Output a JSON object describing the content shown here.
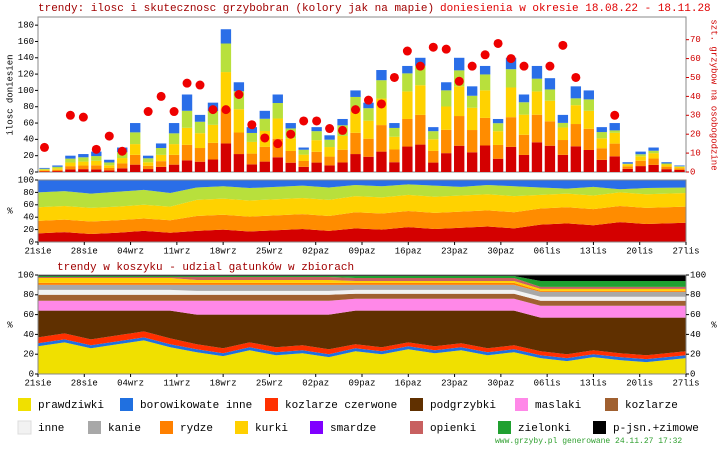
{
  "chart_data": [
    {
      "type": "bar",
      "title": "trendy: ilosc i skutecznosc grzybobran (kolory jak na mapie)",
      "subtitle": "doniesienia w okresie 18.08.22 - 18.11.28",
      "ylabel": "ilosc doniesien",
      "y2label": "szt. grzybow na osobogodzine",
      "x": [
        0,
        2,
        4,
        6,
        8,
        10,
        12,
        14,
        16,
        18,
        20,
        22,
        24,
        26,
        28,
        30,
        32,
        34,
        36,
        38,
        40,
        42,
        44,
        46,
        48,
        50,
        52,
        54,
        56,
        58,
        60,
        62,
        64,
        66,
        68,
        70,
        72,
        74,
        76,
        78,
        80,
        82,
        84,
        86,
        88,
        90,
        92,
        94,
        96,
        98
      ],
      "xlim": [
        -1,
        99
      ],
      "ylim": [
        0,
        190
      ],
      "yticks": [
        0,
        20,
        40,
        60,
        80,
        100,
        120,
        140,
        160,
        180
      ],
      "y2lim": [
        0,
        82
      ],
      "y2ticks": [
        0,
        10,
        20,
        30,
        40,
        50,
        60,
        70
      ],
      "series": [
        {
          "values": [
            5,
            8,
            20,
            22,
            25,
            15,
            30,
            60,
            20,
            35,
            60,
            95,
            70,
            85,
            175,
            110,
            55,
            75,
            95,
            60,
            30,
            55,
            45,
            65,
            100,
            85,
            125,
            60,
            130,
            140,
            55,
            110,
            140,
            105,
            130,
            65,
            140,
            95,
            130,
            115,
            70,
            105,
            100,
            55,
            60,
            12,
            25,
            30,
            12,
            8
          ]
        },
        {
          "axis": "y2",
          "color": "#ee0000",
          "values": [
            13,
            null,
            30,
            29,
            12,
            19,
            11,
            null,
            32,
            40,
            32,
            47,
            46,
            33,
            33,
            41,
            25,
            18,
            15,
            20,
            27,
            27,
            23,
            22,
            33,
            38,
            36,
            50,
            64,
            56,
            66,
            65,
            48,
            56,
            62,
            68,
            60,
            56,
            null,
            56,
            67,
            50,
            null,
            null,
            30,
            null,
            null,
            null,
            null,
            null
          ]
        }
      ]
    },
    {
      "type": "area",
      "ylabel": "%",
      "x": [
        0,
        4,
        8,
        12,
        16,
        20,
        24,
        28,
        32,
        36,
        40,
        44,
        48,
        52,
        56,
        60,
        64,
        68,
        72,
        76,
        80,
        84,
        88,
        92,
        98
      ],
      "xlim": [
        0,
        98
      ],
      "xticks": [
        {
          "value": 0,
          "label": "21sie"
        },
        {
          "value": 7,
          "label": "28sie"
        },
        {
          "value": 14,
          "label": "04wrz"
        },
        {
          "value": 21,
          "label": "11wrz"
        },
        {
          "value": 28,
          "label": "18wrz"
        },
        {
          "value": 35,
          "label": "25wrz"
        },
        {
          "value": 42,
          "label": "02paz"
        },
        {
          "value": 49,
          "label": "09paz"
        },
        {
          "value": 56,
          "label": "16paz"
        },
        {
          "value": 63,
          "label": "23paz"
        },
        {
          "value": 70,
          "label": "30paz"
        },
        {
          "value": 77,
          "label": "06lis"
        },
        {
          "value": 84,
          "label": "13lis"
        },
        {
          "value": 91,
          "label": "20lis"
        },
        {
          "value": 98,
          "label": "27lis"
        }
      ],
      "ylim": [
        0,
        100
      ],
      "yticks": [
        0,
        20,
        40,
        60,
        80,
        100
      ],
      "series": [
        {
          "color": "#d40000",
          "values": [
            14,
            16,
            13,
            15,
            18,
            15,
            18,
            20,
            17,
            19,
            21,
            18,
            22,
            20,
            24,
            21,
            23,
            25,
            22,
            28,
            30,
            27,
            32,
            29,
            31
          ]
        },
        {
          "color": "#ff8c00",
          "values": [
            20,
            20,
            20,
            20,
            20,
            20,
            24,
            24,
            24,
            24,
            24,
            24,
            26,
            26,
            26,
            26,
            26,
            26,
            26,
            26,
            26,
            26,
            26,
            26,
            26
          ]
        },
        {
          "color": "#ffd200",
          "values": [
            22,
            22,
            22,
            22,
            22,
            22,
            26,
            26,
            26,
            26,
            26,
            26,
            26,
            26,
            26,
            26,
            26,
            26,
            26,
            22,
            22,
            22,
            22,
            22,
            22
          ]
        },
        {
          "color": "#b8e03c",
          "values": [
            24,
            24,
            23,
            24,
            24,
            22,
            20,
            20,
            20,
            20,
            20,
            20,
            18,
            18,
            17,
            18,
            14,
            15,
            16,
            12,
            8,
            14,
            5,
            10,
            9
          ]
        },
        {
          "color": "#2a6ee8",
          "values": [
            20,
            18,
            22,
            19,
            16,
            21,
            12,
            10,
            13,
            11,
            9,
            12,
            8,
            10,
            7,
            9,
            11,
            8,
            10,
            12,
            14,
            11,
            15,
            13,
            12
          ]
        }
      ]
    },
    {
      "type": "area",
      "title": "trendy w koszyku - udzial gatunków w zbiorach",
      "ylabel": "%",
      "x": [
        0,
        4,
        8,
        12,
        16,
        20,
        24,
        28,
        32,
        36,
        40,
        44,
        48,
        52,
        56,
        60,
        64,
        68,
        72,
        76,
        80,
        84,
        88,
        92,
        98
      ],
      "xlim": [
        0,
        98
      ],
      "xticks": [
        {
          "value": 0,
          "label": "21sie"
        },
        {
          "value": 7,
          "label": "28sie"
        },
        {
          "value": 14,
          "label": "04wrz"
        },
        {
          "value": 21,
          "label": "11wrz"
        },
        {
          "value": 28,
          "label": "18wrz"
        },
        {
          "value": 35,
          "label": "25wrz"
        },
        {
          "value": 42,
          "label": "02paz"
        },
        {
          "value": 49,
          "label": "09paz"
        },
        {
          "value": 56,
          "label": "16paz"
        },
        {
          "value": 63,
          "label": "23paz"
        },
        {
          "value": 70,
          "label": "30paz"
        },
        {
          "value": 77,
          "label": "06lis"
        },
        {
          "value": 84,
          "label": "13lis"
        },
        {
          "value": 91,
          "label": "20lis"
        },
        {
          "value": 98,
          "label": "27lis"
        }
      ],
      "ylim": [
        0,
        100
      ],
      "yticks": [
        0,
        20,
        40,
        60,
        80,
        100
      ],
      "series": [
        {
          "name": "prawdziwki",
          "color": "#f0e000",
          "values": [
            28,
            32,
            26,
            30,
            34,
            27,
            22,
            18,
            24,
            19,
            21,
            17,
            23,
            20,
            25,
            21,
            24,
            19,
            22,
            16,
            13,
            17,
            14,
            12,
            16
          ]
        },
        {
          "name": "borowikowate inne",
          "color": "#2070e0",
          "values": [
            3,
            3,
            3,
            3,
            3,
            3,
            3,
            3,
            3,
            3,
            3,
            3,
            3,
            3,
            3,
            3,
            3,
            3,
            3,
            3,
            3,
            3,
            3,
            3,
            3
          ]
        },
        {
          "name": "kozlarze czerwone",
          "color": "#ff3000",
          "values": [
            6,
            6,
            6,
            6,
            6,
            6,
            5,
            5,
            5,
            5,
            5,
            5,
            4,
            4,
            4,
            4,
            4,
            4,
            4,
            4,
            4,
            4,
            4,
            4,
            4
          ]
        },
        {
          "name": "podgrzybki",
          "color": "#603000",
          "values": [
            27,
            23,
            29,
            25,
            21,
            28,
            30,
            34,
            28,
            33,
            31,
            35,
            34,
            37,
            32,
            36,
            33,
            38,
            35,
            34,
            37,
            33,
            36,
            38,
            34
          ]
        },
        {
          "name": "maslaki",
          "color": "#ff88e8",
          "values": [
            10,
            10,
            10,
            10,
            10,
            10,
            14,
            14,
            14,
            14,
            14,
            14,
            12,
            12,
            12,
            12,
            12,
            12,
            12,
            12,
            12,
            12,
            12,
            12,
            12
          ]
        },
        {
          "name": "kozlarze",
          "color": "#a06030",
          "values": [
            6,
            6,
            6,
            6,
            6,
            6,
            6,
            6,
            6,
            6,
            6,
            6,
            5,
            5,
            5,
            5,
            5,
            5,
            5,
            5,
            5,
            5,
            5,
            5,
            5
          ]
        },
        {
          "name": "inne",
          "color": "#f2f2f2",
          "values": [
            5,
            5,
            5,
            5,
            5,
            5,
            4,
            4,
            4,
            4,
            4,
            4,
            4,
            4,
            4,
            4,
            4,
            4,
            4,
            4,
            4,
            4,
            4,
            4,
            4
          ]
        },
        {
          "name": "kanie",
          "color": "#a8a8a8",
          "values": [
            5,
            5,
            5,
            5,
            5,
            5,
            6,
            6,
            6,
            6,
            6,
            6,
            5,
            5,
            5,
            5,
            5,
            5,
            5,
            5,
            5,
            5,
            5,
            5,
            5
          ]
        },
        {
          "name": "rydze",
          "color": "#ff8000",
          "values": [
            2,
            2,
            2,
            2,
            2,
            2,
            2,
            2,
            2,
            2,
            2,
            2,
            2,
            2,
            2,
            2,
            2,
            2,
            2,
            1,
            1,
            1,
            1,
            1,
            1
          ]
        },
        {
          "name": "kurki",
          "color": "#ffd000",
          "values": [
            5,
            5,
            5,
            5,
            5,
            5,
            3,
            3,
            3,
            3,
            3,
            3,
            2,
            2,
            2,
            2,
            2,
            2,
            2,
            2,
            2,
            2,
            2,
            2,
            2
          ]
        },
        {
          "name": "smardze",
          "color": "#8000ff",
          "values": [
            0,
            0,
            0,
            0,
            0,
            0,
            0,
            0,
            0,
            0,
            0,
            0,
            0,
            0,
            0,
            0,
            0,
            0,
            0,
            0,
            0,
            0,
            0,
            0,
            0
          ]
        },
        {
          "name": "opienki",
          "color": "#c86060",
          "values": [
            1,
            1,
            1,
            1,
            1,
            1,
            3,
            3,
            3,
            3,
            3,
            3,
            3,
            3,
            3,
            3,
            3,
            3,
            3,
            2,
            2,
            2,
            2,
            2,
            2
          ]
        },
        {
          "name": "zielonki",
          "color": "#20a030",
          "values": [
            1,
            1,
            1,
            1,
            1,
            1,
            1,
            1,
            1,
            1,
            1,
            1,
            2,
            2,
            2,
            2,
            2,
            2,
            2,
            6,
            6,
            6,
            6,
            6,
            6
          ]
        },
        {
          "name": "p-jsn.+zimowe",
          "color": "#000000",
          "values": [
            1,
            1,
            1,
            1,
            1,
            1,
            1,
            1,
            1,
            1,
            1,
            1,
            1,
            1,
            1,
            1,
            1,
            1,
            1,
            6,
            6,
            6,
            6,
            6,
            6
          ]
        }
      ]
    },
    {
      "type": "note",
      "text": "www.grzyby.pl generowane 24.11.27 17:32"
    }
  ]
}
